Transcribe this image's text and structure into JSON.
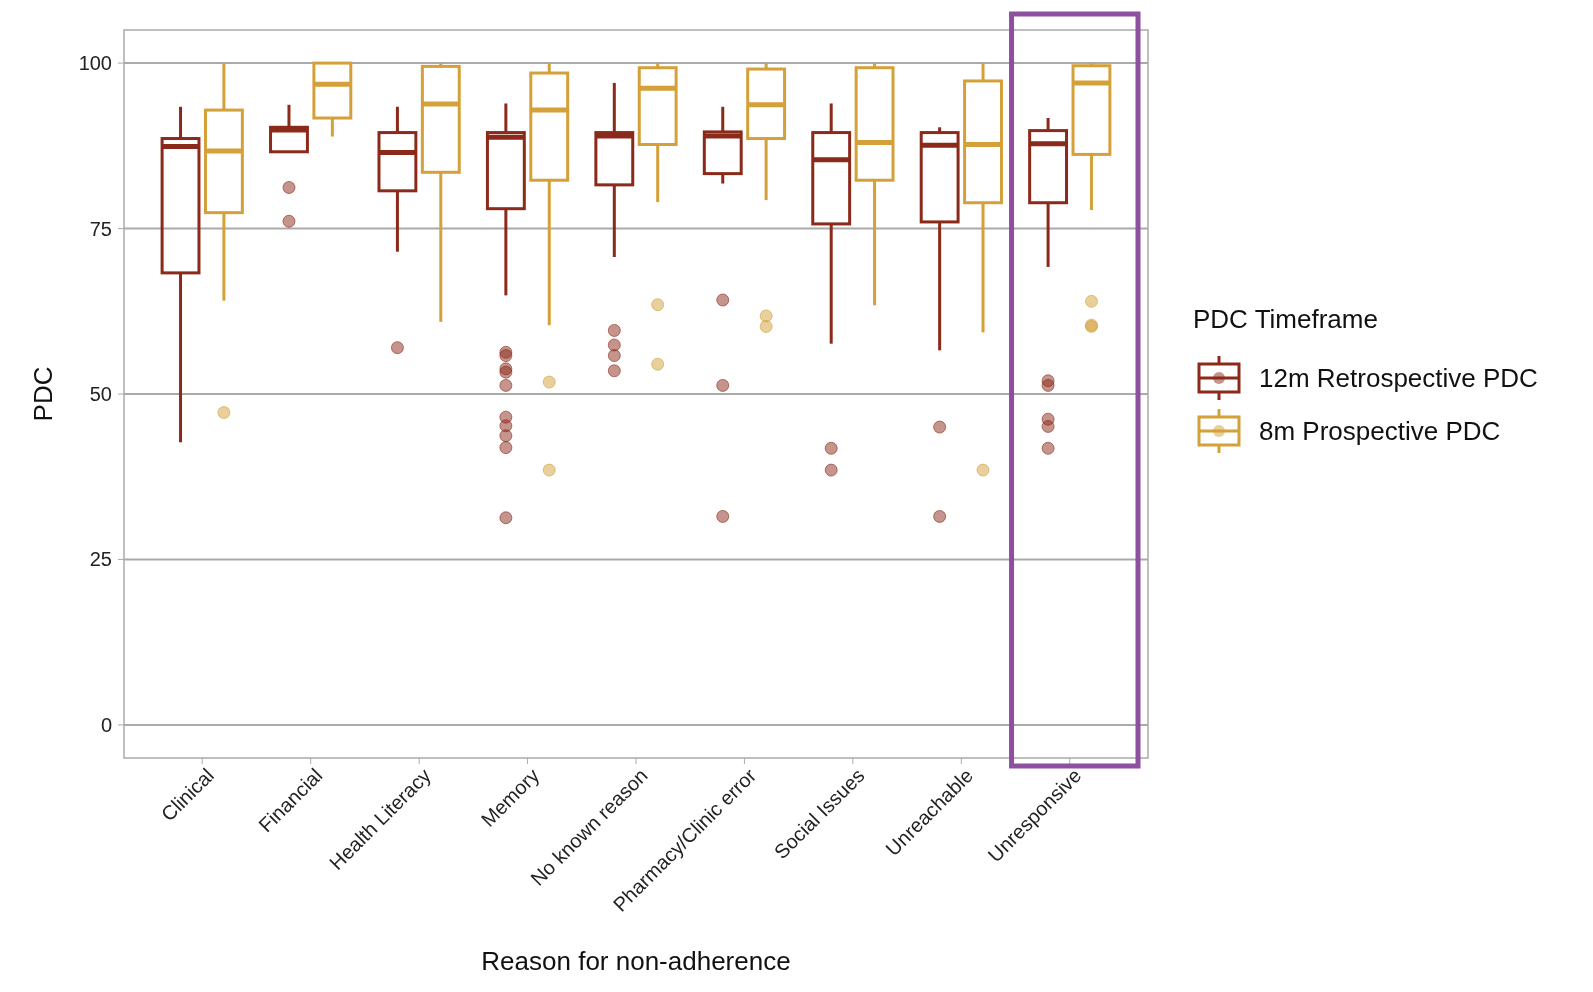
{
  "chart_data": {
    "type": "box",
    "xlabel": "Reason for non-adherence",
    "ylabel": "PDC",
    "legend_title": "PDC Timeframe",
    "legend": "right",
    "grid": "y",
    "categories": [
      "Clinical",
      "Financial",
      "Health Literacy",
      "Memory",
      "No known reason",
      "Pharmacy/Clinic error",
      "Social Issues",
      "Unreachable",
      "Unresponsive"
    ],
    "ylim": [
      -5,
      105
    ],
    "yticks": [
      0,
      25,
      50,
      75,
      100
    ],
    "series": [
      {
        "name": "12m Retrospective PDC",
        "color": "#8b2a1a",
        "boxes": [
          {
            "low": 42.7,
            "q1": 68.3,
            "median": 87.4,
            "q3": 88.6,
            "high": 93.4
          },
          {
            "low": 86.6,
            "q1": 86.6,
            "median": 89.9,
            "q3": 90.3,
            "high": 93.7,
            "outliers": [
              81.2,
              76.1
            ]
          },
          {
            "low": 71.5,
            "q1": 80.7,
            "median": 86.5,
            "q3": 89.5,
            "high": 93.4,
            "outliers": [
              57.0
            ]
          },
          {
            "low": 64.9,
            "q1": 78.0,
            "median": 88.8,
            "q3": 89.5,
            "high": 93.9,
            "outliers": [
              56.3,
              55.8,
              53.8,
              53.3,
              51.3,
              46.5,
              45.2,
              43.7,
              41.9,
              31.3
            ]
          },
          {
            "low": 70.7,
            "q1": 81.6,
            "median": 89.0,
            "q3": 89.5,
            "high": 97.0,
            "outliers": [
              59.6,
              57.4,
              55.8,
              53.5
            ]
          },
          {
            "low": 81.8,
            "q1": 83.3,
            "median": 89.0,
            "q3": 89.6,
            "high": 93.4,
            "outliers": [
              64.2,
              51.3,
              31.5
            ]
          },
          {
            "low": 57.6,
            "q1": 75.7,
            "median": 85.4,
            "q3": 89.5,
            "high": 93.9,
            "outliers": [
              41.8,
              38.5
            ]
          },
          {
            "low": 56.6,
            "q1": 76.0,
            "median": 87.6,
            "q3": 89.5,
            "high": 90.3,
            "outliers": [
              45.0,
              31.5
            ]
          },
          {
            "low": 69.2,
            "q1": 78.9,
            "median": 87.8,
            "q3": 89.8,
            "high": 91.7,
            "outliers": [
              52.0,
              51.3,
              46.2,
              45.1,
              41.8
            ]
          }
        ]
      },
      {
        "name": "8m Prospective PDC",
        "color": "#d4a03a",
        "boxes": [
          {
            "low": 64.1,
            "q1": 77.4,
            "median": 86.7,
            "q3": 92.9,
            "high": 100,
            "outliers": [
              47.2
            ]
          },
          {
            "low": 88.9,
            "q1": 91.7,
            "median": 96.8,
            "q3": 100,
            "high": 100
          },
          {
            "low": 60.9,
            "q1": 83.5,
            "median": 93.8,
            "q3": 99.5,
            "high": 100
          },
          {
            "low": 60.4,
            "q1": 82.3,
            "median": 92.9,
            "q3": 98.5,
            "high": 100,
            "outliers": [
              51.8,
              38.5
            ]
          },
          {
            "low": 79.0,
            "q1": 87.7,
            "median": 96.2,
            "q3": 99.3,
            "high": 100,
            "outliers": [
              63.5,
              54.5
            ]
          },
          {
            "low": 79.3,
            "q1": 88.6,
            "median": 93.7,
            "q3": 99.1,
            "high": 100,
            "outliers": [
              61.8,
              60.2
            ]
          },
          {
            "low": 63.4,
            "q1": 82.3,
            "median": 88.0,
            "q3": 99.3,
            "high": 100
          },
          {
            "low": 59.3,
            "q1": 78.9,
            "median": 87.7,
            "q3": 97.3,
            "high": 100,
            "outliers": [
              38.5
            ]
          },
          {
            "low": 77.8,
            "q1": 86.2,
            "median": 97.0,
            "q3": 99.6,
            "high": 100,
            "outliers": [
              64.0,
              60.4,
              60.2
            ]
          }
        ]
      }
    ]
  }
}
